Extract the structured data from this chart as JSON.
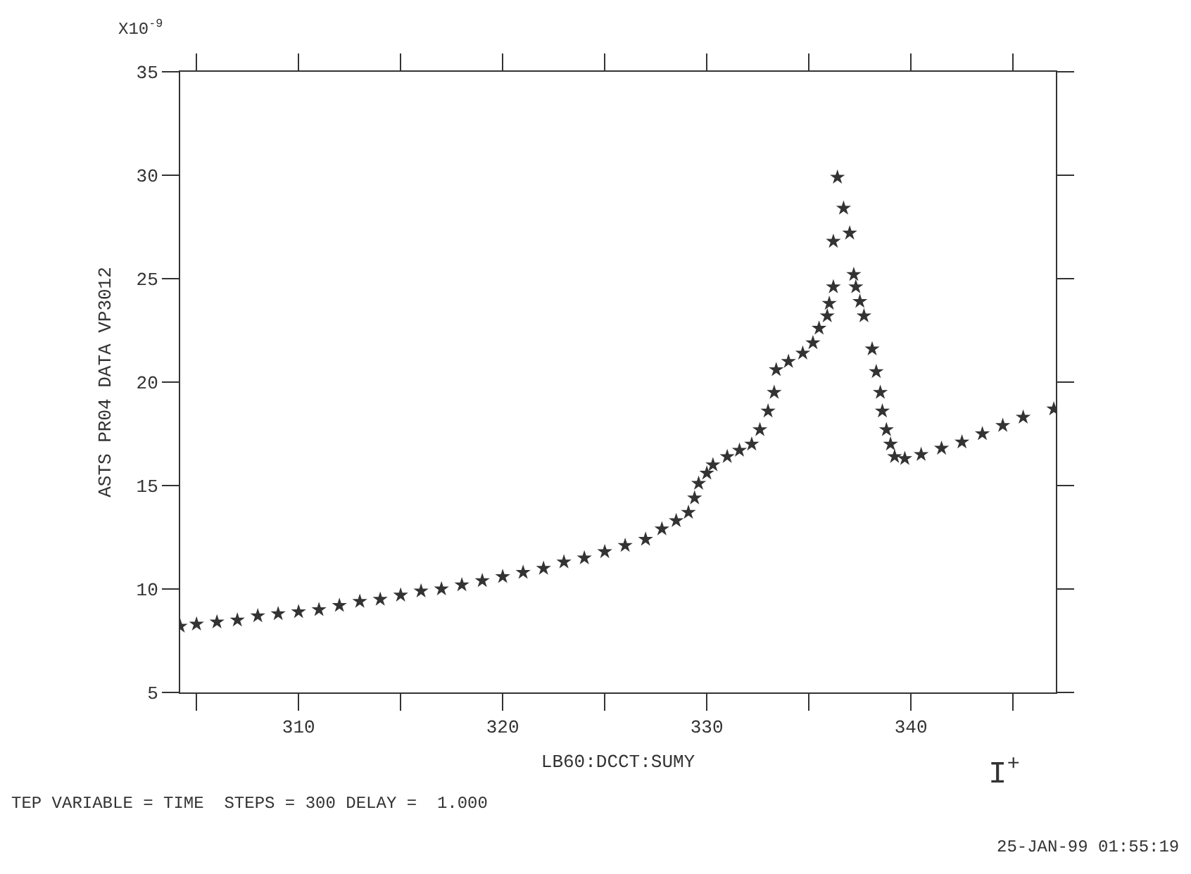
{
  "chart_data": {
    "type": "scatter",
    "xlabel": "LB60:DCCT:SUMY",
    "ylabel": "ASTS PR04 DATA VP3012",
    "annotations": [
      "X10$^{-9}$",
      "TEP VARIABLE = TIME  STEPS = 300 DELAY =  1.000",
      "I$^{+}$",
      "25-JAN-99 01:55:19"
    ],
    "x": [
      304.2,
      305,
      306,
      307,
      308,
      309,
      310,
      311,
      312,
      313,
      314,
      315,
      316,
      317,
      318,
      319,
      320,
      321,
      322,
      323,
      324,
      325,
      326,
      327,
      327.8,
      328.5,
      329.1,
      329.4,
      329.6,
      330.0,
      330.3,
      331,
      331.6,
      332.2,
      332.6,
      333.0,
      333.3,
      333.4,
      334,
      334.7,
      335.2,
      335.5,
      335.9,
      336.0,
      336.2,
      336.2,
      336.4,
      336.7,
      337.0,
      337.2,
      337.3,
      337.5,
      337.7,
      338.1,
      338.3,
      338.5,
      338.6,
      338.8,
      339.0,
      339.2,
      339.7,
      340.5,
      341.5,
      342.5,
      343.5,
      344.5,
      345.5,
      347.0
    ],
    "series": [
      {
        "color": "#333333",
        "values": [
          8.2,
          8.3,
          8.4,
          8.5,
          8.7,
          8.8,
          8.9,
          9.0,
          9.2,
          9.4,
          9.5,
          9.7,
          9.9,
          10.0,
          10.2,
          10.4,
          10.6,
          10.8,
          11.0,
          11.3,
          11.5,
          11.8,
          12.1,
          12.4,
          12.9,
          13.3,
          13.7,
          14.4,
          15.1,
          15.6,
          16.0,
          16.4,
          16.7,
          17.0,
          17.7,
          18.6,
          19.5,
          20.6,
          21.0,
          21.4,
          21.9,
          22.6,
          23.2,
          23.8,
          24.6,
          26.8,
          29.9,
          28.4,
          27.2,
          25.2,
          24.6,
          23.9,
          23.2,
          21.6,
          20.5,
          19.5,
          18.6,
          17.7,
          17.0,
          16.4,
          16.3,
          16.5,
          16.8,
          17.1,
          17.5,
          17.9,
          18.3,
          18.7
        ]
      }
    ],
    "xlim": [
      304.2,
      347.1
    ],
    "ylim": [
      5,
      35
    ],
    "xticks": [
      {
        "value": 305,
        "label": null
      },
      310,
      {
        "value": 315,
        "label": null
      },
      320,
      {
        "value": 325,
        "label": null
      },
      330,
      {
        "value": 335,
        "label": null
      },
      340,
      {
        "value": 345,
        "label": null
      }
    ],
    "yticks": [
      5,
      10,
      15,
      20,
      25,
      30,
      35
    ],
    "marker": "star"
  }
}
